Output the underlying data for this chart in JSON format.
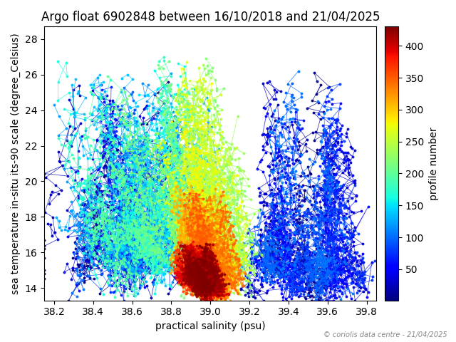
{
  "title": "Argo float 6902848 between 16/10/2018 and 21/04/2025",
  "xlabel": "practical salinity (psu)",
  "ylabel": "sea temperature in-situ its-90 scale (degree_Celsius)",
  "colorbar_label": "profile number",
  "copyright": "© coriolis data centre - 21/04/2025",
  "xlim": [
    38.15,
    39.85
  ],
  "ylim": [
    13.3,
    28.7
  ],
  "xticks": [
    38.2,
    38.4,
    38.6,
    38.8,
    39.0,
    39.2,
    39.4,
    39.6,
    39.8
  ],
  "yticks": [
    14,
    16,
    18,
    20,
    22,
    24,
    26,
    28
  ],
  "cmap": "jet",
  "vmin": 1,
  "vmax": 430,
  "n_profiles": 430,
  "random_seed": 7
}
